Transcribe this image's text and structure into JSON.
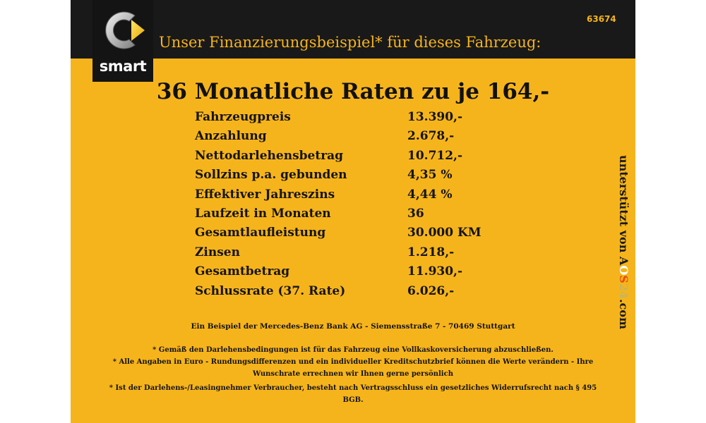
{
  "ref_number": "63674",
  "logo": {
    "text": "smart",
    "icon": "smart-logo-icon"
  },
  "headline": "Unser Finanzierungsbeispiel* für dieses Fahrzeug:",
  "main_title": "36 Monatliche Raten zu je 164,-",
  "rows": [
    {
      "label": "Fahrzeugpreis",
      "value": "13.390,-"
    },
    {
      "label": "Anzahlung",
      "value": "2.678,-"
    },
    {
      "label": "Nettodarlehensbetrag",
      "value": "10.712,-"
    },
    {
      "label": "Sollzins p.a. gebunden",
      "value": "4,35 %"
    },
    {
      "label": "Effektiver Jahreszins",
      "value": "4,44 %"
    },
    {
      "label": "Laufzeit in Monaten",
      "value": "36"
    },
    {
      "label": "Gesamtlaufleistung",
      "value": "30.000 KM"
    },
    {
      "label": "Zinsen",
      "value": "1.218,-"
    },
    {
      "label": "Gesamtbetrag",
      "value": "11.930,-"
    },
    {
      "label": "Schlussrate (37. Rate)",
      "value": "6.026,-"
    }
  ],
  "lender_line": "Ein Beispiel der Mercedes-Benz Bank AG - Siemensstraße 7 - 70469 Stuttgart",
  "notes": {
    "note1": "* Gemäß den Darlehensbedingungen ist für das Fahrzeug eine Vollkaskoversicherung abzuschließen.",
    "note2": "* Alle Angaben in Euro - Rundungsdifferenzen und ein individueller Kreditschutzbrief können die Werte verändern - Ihre Wunschrate errechnen wir Ihnen gerne persönlich",
    "note3": "* Ist der Darlehens-/Leasingnehmer Verbraucher, besteht nach Vertragsschluss ein gesetzliches Widerrufsrecht nach § 495 BGB."
  },
  "vertical": {
    "prefix": "unterstützt von ",
    "brand_a": "A",
    "brand_o": "O",
    "brand_s": "S",
    "brand_24": "24",
    "suffix": ".com"
  },
  "colors": {
    "background": "#f6b41c",
    "topbar": "#191919",
    "headline": "#f6b41c",
    "text": "#141414"
  }
}
